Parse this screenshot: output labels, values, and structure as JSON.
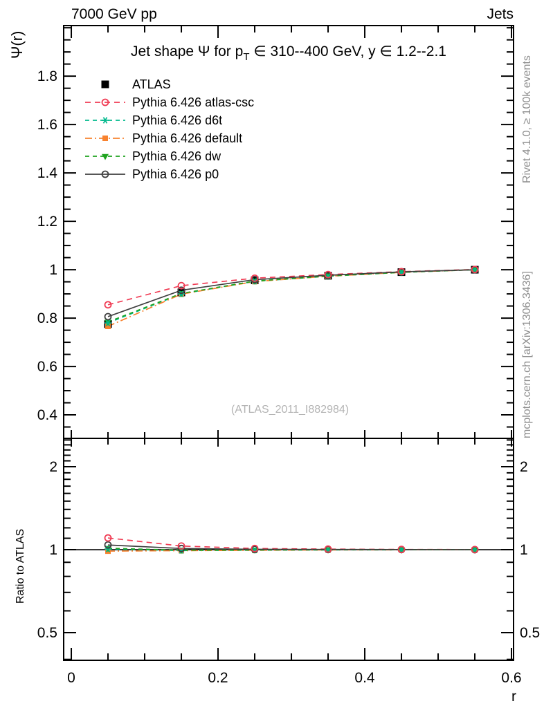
{
  "header": {
    "left": "7000 GeV pp",
    "right": "Jets"
  },
  "side_notes": {
    "top": "Rivet 4.1.0, ≥ 100k events",
    "bottom": "mcplots.cern.ch [arXiv:1306.3436]"
  },
  "watermark": "(ATLAS_2011_I882984)",
  "chart_data": {
    "type": "line",
    "title": "Jet shape Ψ for p_T ∈ 310--400 GeV, y ∈ 1.2--2.1",
    "title_parts": {
      "pre": "Jet shape Ψ for p",
      "sub": "T",
      "post": " ∈ 310--400 GeV, y ∈ 1.2--2.1"
    },
    "xlabel": "r",
    "ylabel_main": "Ψ(r)",
    "ylabel_ratio": "Ratio to ATLAS",
    "x": [
      0.05,
      0.15,
      0.25,
      0.35,
      0.45,
      0.55
    ],
    "xlim": [
      -0.0104,
      0.6028
    ],
    "ylim_main": [
      0.303,
      2.009
    ],
    "ylim_ratio": [
      0.397,
      2.534
    ],
    "ratio_scale": "log",
    "grid": false,
    "legend_position": "top-left",
    "x_major_ticks": [
      0,
      0.2,
      0.4,
      0.6
    ],
    "x_tick_labels": [
      "0",
      "0.2",
      "0.4",
      "0.6"
    ],
    "x_minor_step": 0.05,
    "y_major_ticks_main": [
      0.4,
      0.6,
      0.8,
      1.0,
      1.2,
      1.4,
      1.6,
      1.8
    ],
    "y_tick_labels_main": [
      "0.4",
      "0.6",
      "0.8",
      "1",
      "1.2",
      "1.4",
      "1.6",
      "1.8"
    ],
    "y_minor_step_main": 0.05,
    "y_major_ticks_ratio": [
      0.5,
      1,
      2
    ],
    "y_tick_labels_ratio": [
      "0.5",
      "1",
      "2"
    ],
    "y_minor_ticks_ratio": [
      0.4,
      0.6,
      0.7,
      0.8,
      0.9,
      1.1,
      1.2,
      1.3,
      1.4,
      1.5,
      1.6,
      1.7,
      1.8,
      1.9,
      2.1,
      2.2,
      2.3,
      2.4,
      2.5
    ],
    "series": [
      {
        "name": "ATLAS",
        "color": "#000000",
        "line": "none",
        "dash": "",
        "marker": "square-filled",
        "msize": 11,
        "values": [
          0.775,
          0.906,
          0.956,
          0.975,
          0.99,
          1.0
        ],
        "ratio": [
          1,
          1,
          1,
          1,
          1,
          1
        ]
      },
      {
        "name": "Pythia 6.426 atlas-csc",
        "color": "#f03c54",
        "line": "dashed",
        "dash": "8 6",
        "marker": "circle-open",
        "msize": 9,
        "values": [
          0.855,
          0.934,
          0.965,
          0.98,
          0.992,
          1.001
        ],
        "ratio": [
          1.103,
          1.031,
          1.01,
          1.005,
          1.002,
          1.001
        ]
      },
      {
        "name": "Pythia 6.426 d6t",
        "color": "#00b98d",
        "line": "dashed",
        "dash": "6 5",
        "marker": "asterisk",
        "msize": 10,
        "values": [
          0.78,
          0.9,
          0.952,
          0.973,
          0.989,
          1.0
        ],
        "ratio": [
          1.006,
          0.993,
          0.996,
          0.998,
          0.999,
          1.0
        ]
      },
      {
        "name": "Pythia 6.426 default",
        "color": "#f8822f",
        "line": "dashdot",
        "dash": "10 4 2 4",
        "marker": "square-filled",
        "msize": 8,
        "values": [
          0.766,
          0.899,
          0.951,
          0.973,
          0.989,
          1.0
        ],
        "ratio": [
          0.988,
          0.992,
          0.995,
          0.998,
          0.999,
          1.0
        ]
      },
      {
        "name": "Pythia 6.426 dw",
        "color": "#1ea31e",
        "line": "dashed",
        "dash": "6 5",
        "marker": "triangle-down-filled",
        "msize": 10,
        "values": [
          0.784,
          0.902,
          0.953,
          0.974,
          0.989,
          1.0
        ],
        "ratio": [
          1.012,
          0.996,
          0.997,
          0.999,
          0.999,
          1.0
        ]
      },
      {
        "name": "Pythia 6.426 p0",
        "color": "#3f3f3f",
        "line": "solid",
        "dash": "",
        "marker": "circle-open",
        "msize": 9,
        "values": [
          0.806,
          0.915,
          0.959,
          0.977,
          0.991,
          1.0
        ],
        "ratio": [
          1.04,
          1.01,
          1.003,
          1.002,
          1.001,
          1.0
        ]
      }
    ]
  }
}
